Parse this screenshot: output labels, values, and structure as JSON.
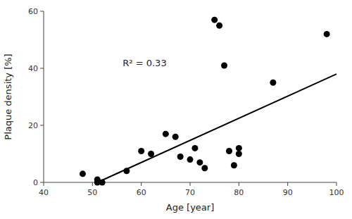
{
  "chart_data": {
    "type": "scatter",
    "x_label": "Age [year]",
    "y_label": "Plaque density [%]",
    "annotation": "R² = 0.33",
    "series": [
      {
        "type": "scatter",
        "color": "#000000",
        "x": [
          48,
          51,
          51,
          52,
          57,
          60,
          62,
          65,
          67,
          68,
          70,
          71,
          72,
          73,
          75,
          76,
          77,
          78,
          79,
          80,
          80,
          87,
          98
        ],
        "values": [
          3,
          1,
          0,
          0,
          4,
          11,
          10,
          17,
          16,
          9,
          8,
          12,
          7,
          5,
          57,
          55,
          41,
          11,
          6,
          10,
          12,
          35,
          52
        ]
      },
      {
        "type": "line",
        "color": "#000000",
        "x": [
          51,
          100
        ],
        "values": [
          0,
          38
        ]
      }
    ],
    "xlim": [
      40,
      100
    ],
    "ylim": [
      0,
      60
    ],
    "xticks": [
      40,
      50,
      60,
      70,
      80,
      90,
      100
    ],
    "yticks": [
      0,
      20,
      40,
      60
    ],
    "grid": false
  }
}
